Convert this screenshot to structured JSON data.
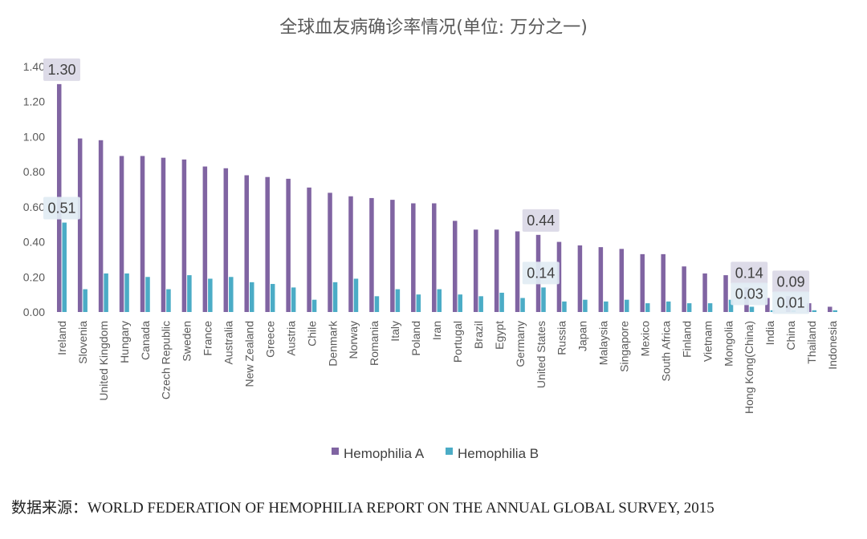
{
  "chart_data": {
    "type": "bar",
    "title": "全球血友病确诊率情况(单位: 万分之一)",
    "categories": [
      "Ireland",
      "Slovenia",
      "United Kingdom",
      "Hungary",
      "Canada",
      "Czech Republic",
      "Sweden",
      "France",
      "Australia",
      "New Zealand",
      "Greece",
      "Austria",
      "Chile",
      "Denmark",
      "Norway",
      "Romania",
      "Italy",
      "Poland",
      "Iran",
      "Portugal",
      "Brazil",
      "Egypt",
      "Germany",
      "United States",
      "Russia",
      "Japan",
      "Malaysia",
      "Singapore",
      "Mexico",
      "South Africa",
      "Finland",
      "Vietnam",
      "Mongolia",
      "Hong Kong(China)",
      "India",
      "China",
      "Thailand",
      "Indonesia"
    ],
    "series": [
      {
        "name": "Hemophilia A",
        "color": "#8064a2",
        "values": [
          1.3,
          0.99,
          0.98,
          0.89,
          0.89,
          0.88,
          0.87,
          0.83,
          0.82,
          0.78,
          0.77,
          0.76,
          0.71,
          0.68,
          0.66,
          0.65,
          0.64,
          0.62,
          0.62,
          0.52,
          0.47,
          0.47,
          0.46,
          0.44,
          0.4,
          0.38,
          0.37,
          0.36,
          0.33,
          0.33,
          0.26,
          0.22,
          0.21,
          0.14,
          0.08,
          0.09,
          0.05,
          0.03
        ]
      },
      {
        "name": "Hemophilia B",
        "color": "#4bacc6",
        "values": [
          0.51,
          0.13,
          0.22,
          0.22,
          0.2,
          0.13,
          0.21,
          0.19,
          0.2,
          0.17,
          0.16,
          0.14,
          0.07,
          0.17,
          0.19,
          0.09,
          0.13,
          0.1,
          0.13,
          0.1,
          0.09,
          0.11,
          0.08,
          0.14,
          0.06,
          0.07,
          0.06,
          0.07,
          0.05,
          0.06,
          0.05,
          0.05,
          0.07,
          0.03,
          0.01,
          0.01,
          0.01,
          0.01
        ]
      }
    ],
    "ylim": [
      0,
      1.4
    ],
    "yticks": [
      "0.00",
      "0.20",
      "0.40",
      "0.60",
      "0.80",
      "1.00",
      "1.20",
      "1.40"
    ],
    "ytick_values": [
      0,
      0.2,
      0.4,
      0.6,
      0.8,
      1.0,
      1.2,
      1.4
    ],
    "annotations": [
      {
        "text": "1.30",
        "category": "Ireland",
        "series": 0
      },
      {
        "text": "0.51",
        "category": "Ireland",
        "series": 1
      },
      {
        "text": "0.44",
        "category": "United States",
        "series": 0
      },
      {
        "text": "0.14",
        "category": "United States",
        "series": 1
      },
      {
        "text": "0.14",
        "category": "Hong Kong(China)",
        "series": 0
      },
      {
        "text": "0.03",
        "category": "Hong Kong(China)",
        "series": 1
      },
      {
        "text": "0.09",
        "category": "China",
        "series": 0
      },
      {
        "text": "0.01",
        "category": "China",
        "series": 1
      }
    ],
    "grid": false,
    "legend_position": "bottom"
  },
  "source": {
    "label": "数据来源：",
    "text": "WORLD FEDERATION OF HEMOPHILIA REPORT ON THE ANNUAL GLOBAL SURVEY, 2015"
  }
}
